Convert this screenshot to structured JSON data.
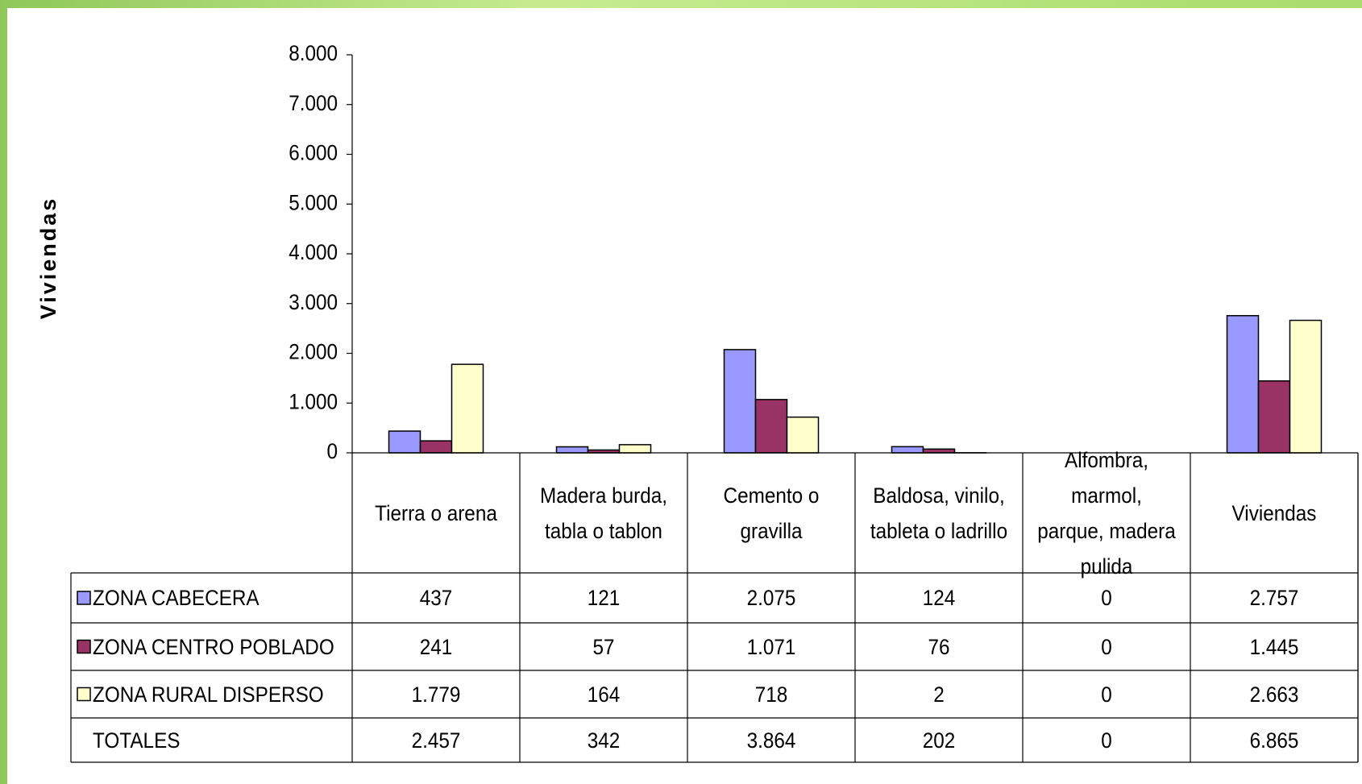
{
  "chart_data": {
    "type": "bar",
    "y_label": "Viviendas",
    "categories": [
      "Tierra o arena",
      "Madera burda, tabla o tablon",
      "Cemento o gravilla",
      "Baldosa, vinilo, tableta o ladrillo",
      "Alfombra, marmol, parque, madera pulida",
      "Viviendas"
    ],
    "series": [
      {
        "name": "ZONA CABECERA",
        "color": "#9999ff",
        "values": [
          437,
          121,
          2075,
          124,
          0,
          2757
        ],
        "value_labels": [
          "437",
          "121",
          "2.075",
          "124",
          "0",
          "2.757"
        ]
      },
      {
        "name": "ZONA CENTRO POBLADO",
        "color": "#993366",
        "values": [
          241,
          57,
          1071,
          76,
          0,
          1445
        ],
        "value_labels": [
          "241",
          "57",
          "1.071",
          "76",
          "0",
          "1.445"
        ]
      },
      {
        "name": "ZONA RURAL DISPERSO",
        "color": "#ffffcc",
        "values": [
          1779,
          164,
          718,
          2,
          0,
          2663
        ],
        "value_labels": [
          "1.779",
          "164",
          "718",
          "2",
          "0",
          "2.663"
        ]
      }
    ],
    "totals": {
      "name": "TOTALES",
      "values": [
        2457,
        342,
        3864,
        202,
        0,
        6865
      ],
      "value_labels": [
        "2.457",
        "342",
        "3.864",
        "202",
        "0",
        "6.865"
      ]
    },
    "ylim": [
      0,
      8000
    ],
    "yticks": [
      0,
      {
        "value": 1000,
        "label": "1.000"
      },
      {
        "value": 2000,
        "label": "2.000"
      },
      {
        "value": 3000,
        "label": "3.000"
      },
      {
        "value": 4000,
        "label": "4.000"
      },
      {
        "value": 5000,
        "label": "5.000"
      },
      {
        "value": 6000,
        "label": "6.000"
      },
      {
        "value": 7000,
        "label": "7.000"
      },
      {
        "value": 8000,
        "label": "8.000"
      }
    ]
  }
}
